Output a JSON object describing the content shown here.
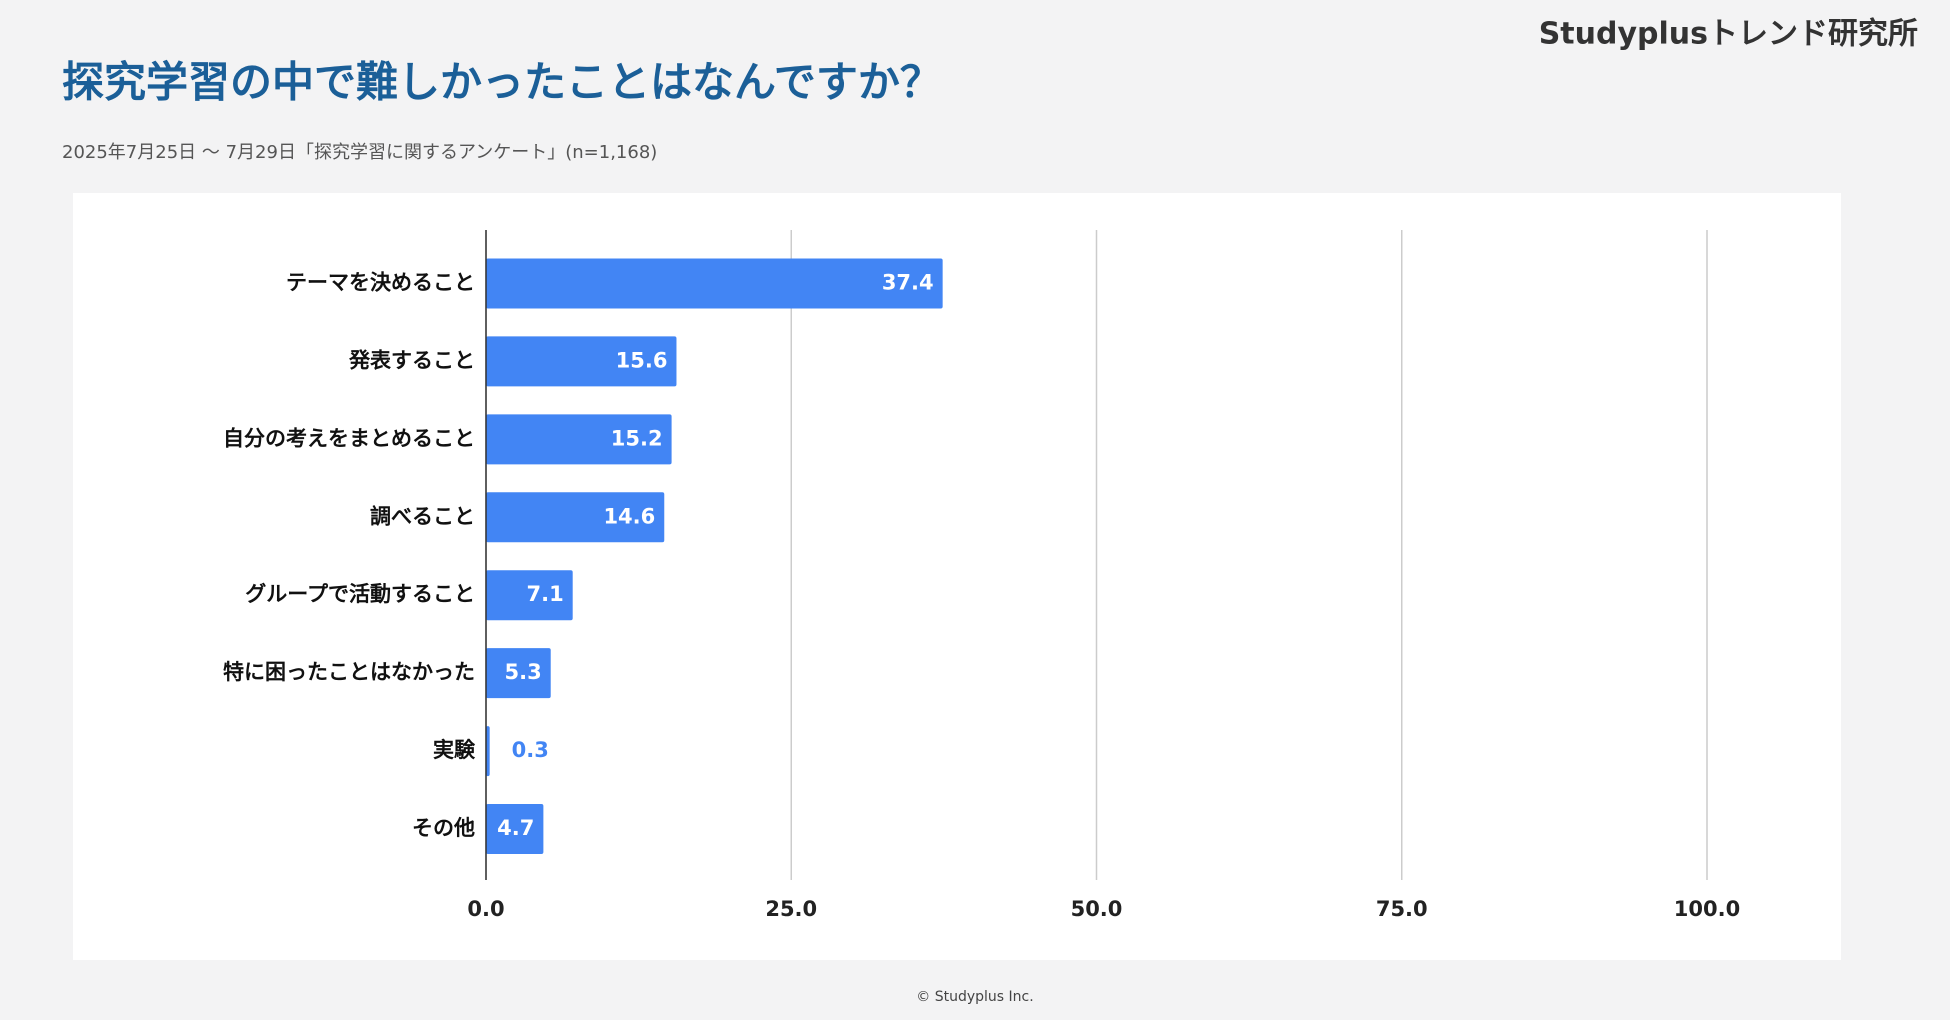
{
  "header": {
    "brand": "Studyplusトレンド研究所"
  },
  "chart_data": {
    "type": "bar",
    "orientation": "horizontal",
    "title": "探究学習の中で難しかったことはなんですか？",
    "subtitle": "2025年7月25日 〜 7月29日「探究学習に関するアンケート」(n=1,168)",
    "categories": [
      "テーマを決めること",
      "発表すること",
      "自分の考えをまとめること",
      "調べること",
      "グループで活動すること",
      "特に困ったことはなかった",
      "実験",
      "その他"
    ],
    "values": [
      37.4,
      15.6,
      15.2,
      14.6,
      7.1,
      5.3,
      0.3,
      4.7
    ],
    "color": "#4285f4",
    "xlim": [
      0,
      100
    ],
    "xticks": [
      {
        "value": 0,
        "label": "0.0"
      },
      {
        "value": 25,
        "label": "25.0"
      },
      {
        "value": 50,
        "label": "50.0"
      },
      {
        "value": 75,
        "label": "75.0"
      },
      {
        "value": 100,
        "label": "100.0"
      }
    ],
    "grid": true
  },
  "footer": {
    "copyright": "© Studyplus Inc."
  }
}
